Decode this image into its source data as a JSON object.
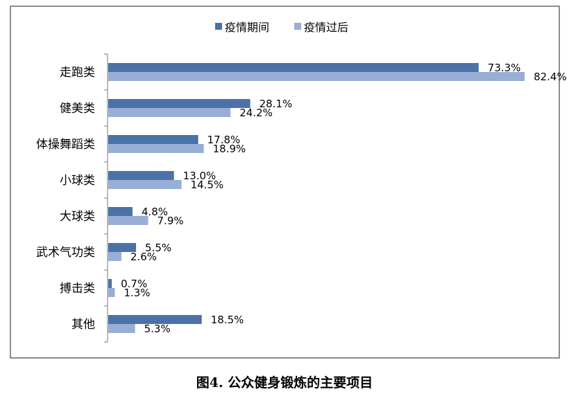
{
  "caption": "图4.  公众健身锻炼的主要项目",
  "colors": {
    "series1": "#4a72a8",
    "series2": "#98aed6",
    "axis": "#8c8c8c"
  },
  "chart_data": {
    "type": "bar",
    "orientation": "horizontal",
    "title": "",
    "xlabel": "",
    "ylabel": "",
    "xlim": [
      0,
      85
    ],
    "grid": false,
    "legend_position": "top",
    "categories": [
      "走跑类",
      "健美类",
      "体操舞蹈类",
      "小球类",
      "大球类",
      "武术气功类",
      "搏击类",
      "其他"
    ],
    "series": [
      {
        "name": "疫情期间",
        "values": [
          73.3,
          28.1,
          17.8,
          13.0,
          4.8,
          5.5,
          0.7,
          18.5
        ],
        "labels": [
          "73.3%",
          "28.1%",
          "17.8%",
          "13.0%",
          "4.8%",
          "5.5%",
          "0.7%",
          "18.5%"
        ]
      },
      {
        "name": "疫情过后",
        "values": [
          82.4,
          24.2,
          18.9,
          14.5,
          7.9,
          2.6,
          1.3,
          5.3
        ],
        "labels": [
          "82.4%",
          "24.2%",
          "18.9%",
          "14.5%",
          "7.9%",
          "2.6%",
          "1.3%",
          "5.3%"
        ]
      }
    ]
  }
}
